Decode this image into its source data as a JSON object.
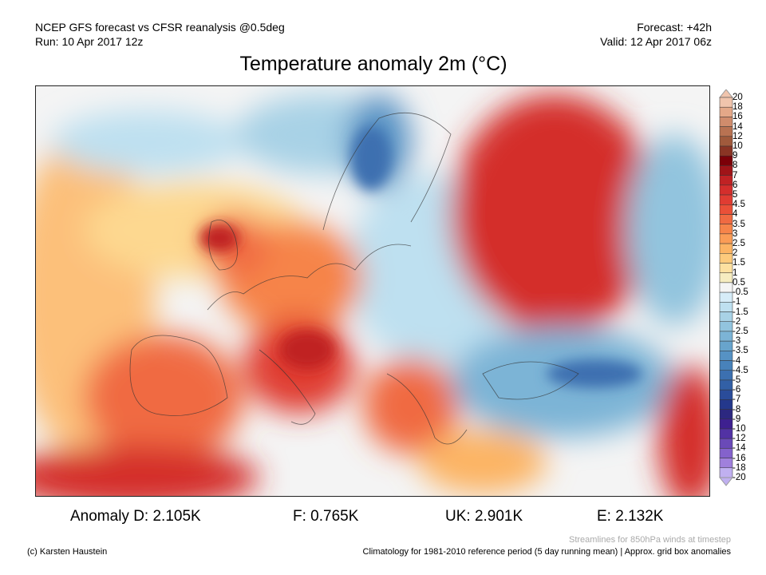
{
  "header": {
    "source": "NCEP GFS forecast vs CFSR reanalysis @0.5deg",
    "run": "Run: 10 Apr 2017 12z",
    "forecast": "Forecast: +42h",
    "valid": "Valid: 12 Apr 2017 06z",
    "title": "Temperature anomaly 2m (°C)"
  },
  "stats": {
    "d": "Anomaly D: 2.105K",
    "f": "F: 0.765K",
    "uk": "UK: 2.901K",
    "e": "E: 2.132K"
  },
  "footer": {
    "credit": "(c) Karsten Haustein",
    "streamlines": "Streamlines for 850hPa winds at timestep",
    "climatology": "Climatology for 1981-2010 reference period (5 day running mean) | Approx. grid box anomalies"
  },
  "colorbar": {
    "labels": [
      "20",
      "18",
      "16",
      "14",
      "12",
      "10",
      "9",
      "8",
      "7",
      "6",
      "5",
      "4.5",
      "4",
      "3.5",
      "3",
      "2.5",
      "2",
      "1.5",
      "1",
      "0.5",
      "-0.5",
      "-1",
      "-1.5",
      "-2",
      "-2.5",
      "-3",
      "-3.5",
      "-4",
      "-4.5",
      "-5",
      "-6",
      "-7",
      "-8",
      "-9",
      "-10",
      "-12",
      "-14",
      "-16",
      "-18",
      "-20"
    ],
    "colors": [
      "#f0c4ac",
      "#e4a888",
      "#d08c6c",
      "#b87252",
      "#a05a3c",
      "#8a3424",
      "#7c0008",
      "#a01418",
      "#c02224",
      "#d42e2c",
      "#e03c32",
      "#ea5038",
      "#f06a42",
      "#f6844a",
      "#fa9c56",
      "#fcb464",
      "#fdca7c",
      "#fde0a0",
      "#f6ecc0",
      "#f4f4f4",
      "#d6ecf8",
      "#bee0f0",
      "#a8d2e6",
      "#92c4de",
      "#7cb4d6",
      "#68a4cc",
      "#5692c4",
      "#4882ba",
      "#3c70b0",
      "#3260a6",
      "#2a4c9a",
      "#24388c",
      "#2c2880",
      "#3e2090",
      "#5232a4",
      "#6a4ab8",
      "#8462cc",
      "#a080dc",
      "#c0b0f0"
    ]
  }
}
